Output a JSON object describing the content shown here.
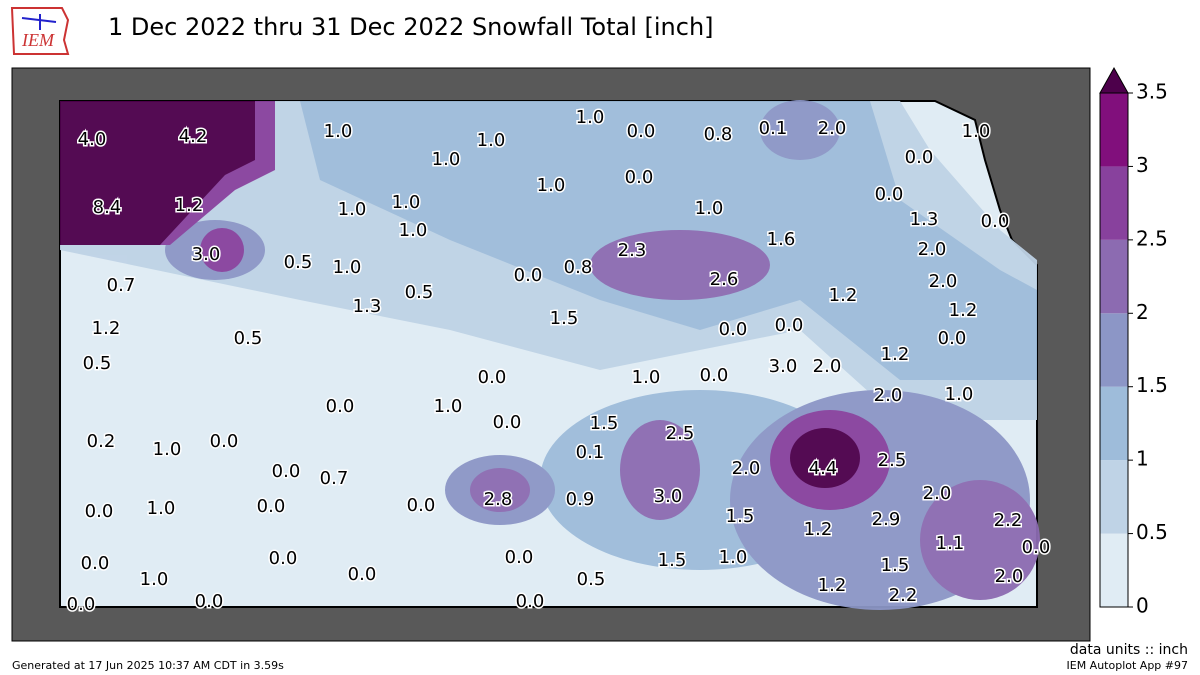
{
  "header": {
    "logo_text": "IEM",
    "title": "1 Dec 2022 thru 31 Dec 2022 Snowfall Total [inch]"
  },
  "map": {
    "station_values": [
      4.0,
      4.2,
      1.0,
      1.0,
      1.0,
      1.0,
      0.0,
      0.8,
      0.1,
      2.0,
      1.0,
      0.0,
      8.4,
      1.2,
      1.0,
      1.0,
      1.0,
      1.0,
      0.0,
      1.0,
      0.0,
      1.3,
      0.0,
      3.0,
      0.5,
      1.0,
      0.5,
      1.3,
      0.0,
      0.8,
      2.3,
      2.6,
      1.6,
      2.0,
      2.0,
      0.7,
      1.2,
      0.5,
      0.5,
      1.5,
      0.0,
      0.0,
      1.2,
      1.2,
      0.0,
      1.2,
      0.0,
      1.0,
      0.0,
      3.0,
      2.0,
      2.0,
      1.0,
      0.0,
      1.0,
      0.0,
      1.5,
      0.2,
      1.0,
      0.0,
      2.5,
      0.1,
      2.0,
      4.4,
      2.5,
      0.0,
      0.7,
      3.0,
      2.8,
      0.9,
      2.0,
      0.0,
      1.0,
      0.0,
      0.0,
      1.5,
      1.2,
      2.9,
      2.2,
      1.1,
      0.0,
      0.0,
      1.0,
      0.0,
      0.0,
      0.0,
      0.5,
      1.5,
      1.0,
      1.5,
      2.0,
      1.2,
      2.2,
      0.0,
      0.0,
      0.0
    ],
    "station_labels": [
      "4.0",
      "4.2",
      "1.0",
      "1.0",
      "1.0",
      "1.0",
      "0.0",
      "0.8",
      "0.1",
      "2.0",
      "1.0",
      "0.0",
      "8.4",
      "1.2",
      "1.0",
      "1.0",
      "1.0",
      "1.0",
      "0.0",
      "1.0",
      "0.0",
      "1.3",
      "0.0",
      "3.0",
      "0.5",
      "1.0",
      "0.5",
      "1.3",
      "0.0",
      "0.8",
      "2.3",
      "2.6",
      "1.6",
      "2.0",
      "2.0",
      "0.7",
      "1.2",
      "0.5",
      "0.5",
      "1.5",
      "0.0",
      "0.0",
      "1.2",
      "1.2",
      "0.0",
      "1.2",
      "0.0",
      "1.0",
      "0.0",
      "3.0",
      "2.0",
      "2.0",
      "1.0",
      "0.0",
      "1.0",
      "0.0",
      "1.5",
      "0.2",
      "1.0",
      "0.0",
      "2.5",
      "0.1",
      "2.0",
      "4.4",
      "2.5",
      "0.0",
      "0.7",
      "3.0",
      "2.8",
      "0.9",
      "2.0",
      "0.0",
      "1.0",
      "0.0",
      "0.0",
      "1.5",
      "1.2",
      "2.9",
      "2.2",
      "1.1",
      "0.0",
      "0.0",
      "1.0",
      "0.0",
      "0.0",
      "0.0",
      "0.5",
      "1.5",
      "1.0",
      "1.5",
      "2.0",
      "1.2",
      "2.2",
      "0.0",
      "0.0",
      "0.0"
    ]
  },
  "colorbar": {
    "range": [
      0,
      3.5
    ],
    "ticks": [
      0,
      0.5,
      1,
      1.5,
      2,
      2.5,
      3,
      3.5
    ],
    "colors": [
      "#e0ecf4",
      "#bfd3e6",
      "#9ebcda",
      "#8c96c6",
      "#8c6bb1",
      "#88419d",
      "#810f7c"
    ],
    "extend_color": "#4d004b",
    "units_label": "data units :: inch"
  },
  "footer": {
    "left": "Generated at 17 Jun 2025 10:37 AM CDT in 3.59s",
    "right": "IEM Autoplot App #97"
  }
}
